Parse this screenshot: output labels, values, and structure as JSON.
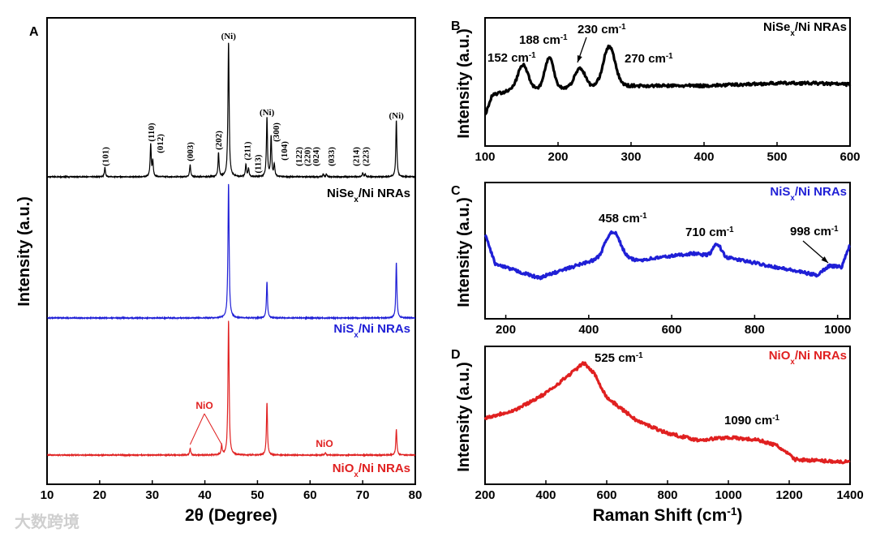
{
  "watermark": "大数跨境",
  "chart_data": [
    {
      "panel": "A",
      "type": "line",
      "xlabel": "2θ (Degree)",
      "ylabel": "Intensity (a.u.)",
      "xlim": [
        10,
        80
      ],
      "xticks": [
        "10",
        "20",
        "30",
        "40",
        "50",
        "60",
        "70",
        "80"
      ],
      "series": [
        {
          "name_main": "NiSe",
          "name_sub": "x",
          "name_rest": "/Ni NRAs",
          "color": "#000000",
          "peaks": [
            [
              21,
              7
            ],
            [
              29.7,
              24
            ],
            [
              30.1,
              11
            ],
            [
              37.2,
              9
            ],
            [
              42.6,
              18
            ],
            [
              44.5,
              100
            ],
            [
              47.8,
              9
            ],
            [
              48.3,
              6
            ],
            [
              51.8,
              44
            ],
            [
              52.6,
              30
            ],
            [
              53.2,
              9
            ],
            [
              62.5,
              2
            ],
            [
              63.1,
              2
            ],
            [
              70.0,
              3
            ],
            [
              70.5,
              2
            ],
            [
              76.4,
              42
            ]
          ],
          "labels": [
            {
              "text": "(101)",
              "x": 21
            },
            {
              "text": "(110)",
              "x": 29.7
            },
            {
              "text": "(012)",
              "x": 31.4
            },
            {
              "text": "(003)",
              "x": 37.1
            },
            {
              "text": "(202)",
              "x": 42.5
            },
            {
              "text": "(211)",
              "x": 48.0
            },
            {
              "text": "(113)",
              "x": 50.0
            },
            {
              "text": "(300)",
              "x": 53.5
            },
            {
              "text": "(104)",
              "x": 55.0
            },
            {
              "text": "(122)",
              "x": 57.8
            },
            {
              "text": "(220)",
              "x": 59.4
            },
            {
              "text": "(024)",
              "x": 61.0
            },
            {
              "text": "(033)",
              "x": 64.0
            },
            {
              "text": "(214)",
              "x": 68.7
            },
            {
              "text": "(223)",
              "x": 70.5
            }
          ],
          "ni_labels": [
            {
              "text": "(Ni)",
              "x": 44.5
            },
            {
              "text": "(Ni)",
              "x": 51.8
            },
            {
              "text": "(Ni)",
              "x": 76.4
            }
          ]
        },
        {
          "name_main": "NiS",
          "name_sub": "x",
          "name_rest": "/Ni NRAs",
          "color": "#1f1fd6",
          "peaks": [
            [
              44.5,
              100
            ],
            [
              51.8,
              27
            ],
            [
              76.4,
              41
            ]
          ]
        },
        {
          "name_main": "NiO",
          "name_sub": "x",
          "name_rest": "/Ni NRAs",
          "color": "#e02020",
          "peaks": [
            [
              37.2,
              5
            ],
            [
              43.2,
              7
            ],
            [
              44.5,
              100
            ],
            [
              51.8,
              39
            ],
            [
              62.9,
              2
            ],
            [
              76.4,
              19
            ]
          ],
          "annotations": [
            {
              "text": "NiO",
              "targets": [
                37.2,
                43.2
              ]
            },
            {
              "text": "NiO",
              "x": 62.9
            }
          ]
        }
      ]
    },
    {
      "panel": "B",
      "type": "line",
      "ylabel": "Intensity (a.u.)",
      "xlim": [
        100,
        600
      ],
      "ylim": [
        0,
        100
      ],
      "xticks": [
        "100",
        "200",
        "300",
        "400",
        "500",
        "600"
      ],
      "series": {
        "name_main": "NiSe",
        "name_sub": "x",
        "name_rest": "/Ni NRAs",
        "color": "#000000",
        "baseline": [
          [
            100,
            24
          ],
          [
            110,
            40
          ],
          [
            140,
            44
          ],
          [
            290,
            47
          ],
          [
            400,
            47
          ],
          [
            500,
            49
          ],
          [
            550,
            49
          ],
          [
            600,
            48
          ]
        ],
        "peaks": [
          [
            152,
            19,
            7
          ],
          [
            188,
            24,
            6
          ],
          [
            230,
            15,
            7
          ],
          [
            270,
            31,
            8
          ]
        ]
      },
      "annotations": [
        {
          "value": "152 cm",
          "sup": "-1"
        },
        {
          "value": "188 cm",
          "sup": "-1"
        },
        {
          "value": "230 cm",
          "sup": "-1",
          "arrow": true
        },
        {
          "value": "270 cm",
          "sup": "-1"
        }
      ]
    },
    {
      "panel": "C",
      "type": "line",
      "ylabel": "Intensity (a.u.)",
      "xlim": [
        150,
        1030
      ],
      "ylim": [
        0,
        100
      ],
      "xticks": [
        "200",
        "400",
        "600",
        "800",
        "1000"
      ],
      "series": {
        "name_main": "NiS",
        "name_sub": "x",
        "name_rest": "/Ni NRAs",
        "color": "#1f1fd6",
        "baseline": [
          [
            150,
            62
          ],
          [
            175,
            40
          ],
          [
            280,
            30
          ],
          [
            400,
            42
          ],
          [
            440,
            43
          ],
          [
            520,
            43
          ],
          [
            650,
            48
          ],
          [
            750,
            44
          ],
          [
            850,
            38
          ],
          [
            950,
            32
          ],
          [
            980,
            39
          ],
          [
            1010,
            38
          ],
          [
            1030,
            55
          ]
        ],
        "peaks": [
          [
            458,
            21,
            18
          ],
          [
            710,
            9,
            10
          ]
        ]
      },
      "annotations": [
        {
          "value": "458 cm",
          "sup": "-1"
        },
        {
          "value": "710 cm",
          "sup": "-1"
        },
        {
          "value": "998 cm",
          "sup": "-1",
          "arrow": true
        }
      ]
    },
    {
      "panel": "D",
      "type": "line",
      "xlabel_main": "Raman Shift (cm",
      "xlabel_sup": "-1",
      "xlabel_end": ")",
      "ylabel": "Intensity (a.u.)",
      "xlim": [
        200,
        1400
      ],
      "ylim": [
        0,
        100
      ],
      "xticks": [
        "200",
        "400",
        "600",
        "800",
        "1000",
        "1200",
        "1400"
      ],
      "series": {
        "name_main": "NiO",
        "name_sub": "x",
        "name_rest": "/Ni NRAs",
        "color": "#e02020",
        "baseline": [
          [
            200,
            48
          ],
          [
            300,
            54
          ],
          [
            400,
            66
          ],
          [
            480,
            80
          ],
          [
            525,
            88
          ],
          [
            560,
            80
          ],
          [
            600,
            63
          ],
          [
            700,
            46
          ],
          [
            800,
            37
          ],
          [
            900,
            32
          ],
          [
            1000,
            34
          ],
          [
            1100,
            32
          ],
          [
            1160,
            28
          ],
          [
            1220,
            18
          ],
          [
            1400,
            16
          ]
        ],
        "peaks": []
      },
      "annotations": [
        {
          "value": "525 cm",
          "sup": "-1"
        },
        {
          "value": "1090 cm",
          "sup": "-1"
        }
      ]
    }
  ]
}
